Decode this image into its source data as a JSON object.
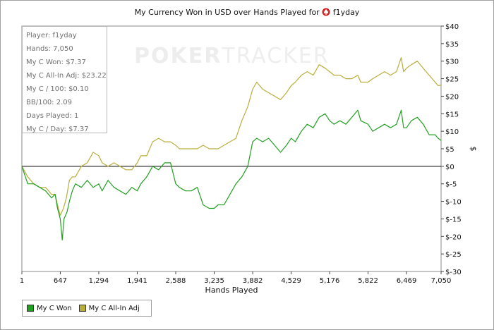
{
  "window": {
    "title_prefix": "My Currency Won in USD over Hands Played for",
    "player_icon": "spade-icon",
    "player_name": "f1yday"
  },
  "watermark": {
    "bold": "POKER",
    "light": "TRACKER"
  },
  "stats": [
    "Player: f1yday",
    "Hands: 7,050",
    "My C Won: $7.37",
    "My C All-In Adj: $23.22",
    "My C / 100: $0.10",
    "BB/100: 2.09",
    "Days Played: 1",
    "My C / Day: $7.37"
  ],
  "legend": [
    {
      "label": "My C Won",
      "color": "#22a022"
    },
    {
      "label": "My C All-In Adj",
      "color": "#b8ae3a"
    }
  ],
  "chart_data": {
    "type": "line",
    "title": "My Currency Won in USD over Hands Played for f1yday",
    "xlabel": "Hands Played",
    "ylabel": "$",
    "xlim": [
      1,
      7050
    ],
    "ylim": [
      -30,
      40
    ],
    "x_ticks": [
      1,
      647,
      1294,
      1941,
      2588,
      3235,
      3882,
      4529,
      5176,
      5822,
      6469,
      7050
    ],
    "x_tick_labels": [
      "1",
      "647",
      "1,294",
      "1,941",
      "2,588",
      "3,235",
      "3,882",
      "4,529",
      "5,176",
      "5,822",
      "6,469",
      "7,050"
    ],
    "y_ticks": [
      40,
      35,
      30,
      25,
      20,
      15,
      10,
      5,
      0,
      -5,
      -10,
      -15,
      -20,
      -25,
      -30
    ],
    "y_tick_labels": [
      "$40",
      "$35",
      "$30",
      "$25",
      "$20",
      "$15",
      "$10",
      "$5",
      "$0",
      "$-5",
      "$-10",
      "$-15",
      "$-20",
      "$-25",
      "$-30"
    ],
    "grid": false,
    "legend_position": "bottom-left",
    "series": [
      {
        "name": "My C Won",
        "color": "#22a022",
        "points": [
          [
            1,
            0
          ],
          [
            100,
            -5
          ],
          [
            200,
            -5
          ],
          [
            300,
            -6
          ],
          [
            400,
            -7
          ],
          [
            500,
            -9
          ],
          [
            560,
            -8
          ],
          [
            600,
            -12
          ],
          [
            647,
            -15
          ],
          [
            680,
            -21
          ],
          [
            710,
            -15
          ],
          [
            760,
            -13
          ],
          [
            800,
            -10
          ],
          [
            850,
            -7
          ],
          [
            900,
            -5
          ],
          [
            1000,
            -6
          ],
          [
            1100,
            -4
          ],
          [
            1200,
            -6
          ],
          [
            1294,
            -5
          ],
          [
            1350,
            -7
          ],
          [
            1450,
            -4
          ],
          [
            1550,
            -6
          ],
          [
            1650,
            -7
          ],
          [
            1750,
            -8
          ],
          [
            1850,
            -6
          ],
          [
            1941,
            -7
          ],
          [
            2000,
            -5
          ],
          [
            2100,
            -3
          ],
          [
            2200,
            0
          ],
          [
            2300,
            -1
          ],
          [
            2400,
            1
          ],
          [
            2500,
            1
          ],
          [
            2588,
            -5
          ],
          [
            2650,
            -6
          ],
          [
            2750,
            -7
          ],
          [
            2850,
            -7
          ],
          [
            2950,
            -6
          ],
          [
            3050,
            -11
          ],
          [
            3150,
            -12
          ],
          [
            3235,
            -12
          ],
          [
            3300,
            -11
          ],
          [
            3400,
            -11
          ],
          [
            3500,
            -8
          ],
          [
            3600,
            -5
          ],
          [
            3700,
            -3
          ],
          [
            3800,
            0
          ],
          [
            3882,
            7
          ],
          [
            3950,
            8
          ],
          [
            4050,
            7
          ],
          [
            4150,
            8
          ],
          [
            4250,
            6
          ],
          [
            4350,
            4
          ],
          [
            4450,
            6
          ],
          [
            4529,
            8
          ],
          [
            4600,
            7
          ],
          [
            4700,
            10
          ],
          [
            4800,
            12
          ],
          [
            4900,
            11
          ],
          [
            5000,
            14
          ],
          [
            5100,
            15
          ],
          [
            5176,
            13
          ],
          [
            5250,
            12
          ],
          [
            5350,
            13
          ],
          [
            5450,
            12
          ],
          [
            5550,
            14
          ],
          [
            5650,
            16
          ],
          [
            5700,
            13
          ],
          [
            5822,
            12
          ],
          [
            5900,
            10
          ],
          [
            6000,
            11
          ],
          [
            6100,
            12
          ],
          [
            6200,
            11
          ],
          [
            6300,
            12
          ],
          [
            6380,
            16
          ],
          [
            6420,
            11
          ],
          [
            6469,
            11
          ],
          [
            6550,
            13
          ],
          [
            6650,
            14
          ],
          [
            6750,
            12
          ],
          [
            6850,
            9
          ],
          [
            6950,
            9
          ],
          [
            7000,
            8
          ],
          [
            7050,
            7.37
          ]
        ]
      },
      {
        "name": "My C All-In Adj",
        "color": "#b8ae3a",
        "points": [
          [
            1,
            0
          ],
          [
            100,
            -3
          ],
          [
            200,
            -5
          ],
          [
            300,
            -6
          ],
          [
            400,
            -6
          ],
          [
            500,
            -8
          ],
          [
            560,
            -8
          ],
          [
            600,
            -11
          ],
          [
            647,
            -14
          ],
          [
            700,
            -12
          ],
          [
            750,
            -9
          ],
          [
            800,
            -4
          ],
          [
            850,
            -3
          ],
          [
            900,
            -3
          ],
          [
            1000,
            0
          ],
          [
            1100,
            1
          ],
          [
            1200,
            4
          ],
          [
            1294,
            3
          ],
          [
            1350,
            1
          ],
          [
            1450,
            0
          ],
          [
            1550,
            1
          ],
          [
            1650,
            0
          ],
          [
            1750,
            -1
          ],
          [
            1850,
            -1
          ],
          [
            1941,
            1
          ],
          [
            2000,
            3
          ],
          [
            2100,
            3
          ],
          [
            2200,
            7
          ],
          [
            2300,
            8
          ],
          [
            2400,
            7
          ],
          [
            2500,
            7
          ],
          [
            2588,
            6
          ],
          [
            2650,
            5
          ],
          [
            2750,
            5
          ],
          [
            2850,
            5
          ],
          [
            2950,
            5
          ],
          [
            3050,
            6
          ],
          [
            3150,
            5
          ],
          [
            3235,
            5
          ],
          [
            3300,
            5
          ],
          [
            3400,
            6
          ],
          [
            3500,
            7
          ],
          [
            3600,
            8
          ],
          [
            3700,
            13
          ],
          [
            3800,
            17
          ],
          [
            3882,
            22
          ],
          [
            3950,
            24
          ],
          [
            4050,
            22
          ],
          [
            4150,
            21
          ],
          [
            4250,
            20
          ],
          [
            4350,
            19
          ],
          [
            4450,
            21
          ],
          [
            4529,
            23
          ],
          [
            4600,
            24
          ],
          [
            4700,
            26
          ],
          [
            4800,
            27
          ],
          [
            4900,
            26
          ],
          [
            5000,
            29
          ],
          [
            5100,
            28
          ],
          [
            5176,
            27
          ],
          [
            5250,
            26
          ],
          [
            5350,
            26
          ],
          [
            5450,
            25
          ],
          [
            5550,
            25
          ],
          [
            5650,
            26
          ],
          [
            5700,
            24
          ],
          [
            5822,
            24
          ],
          [
            5900,
            25
          ],
          [
            6000,
            26
          ],
          [
            6100,
            27
          ],
          [
            6200,
            26
          ],
          [
            6300,
            27
          ],
          [
            6380,
            31
          ],
          [
            6420,
            27
          ],
          [
            6469,
            28
          ],
          [
            6550,
            29
          ],
          [
            6650,
            30
          ],
          [
            6750,
            28
          ],
          [
            6850,
            26
          ],
          [
            6950,
            24
          ],
          [
            7000,
            23
          ],
          [
            7050,
            23.22
          ]
        ]
      }
    ]
  }
}
